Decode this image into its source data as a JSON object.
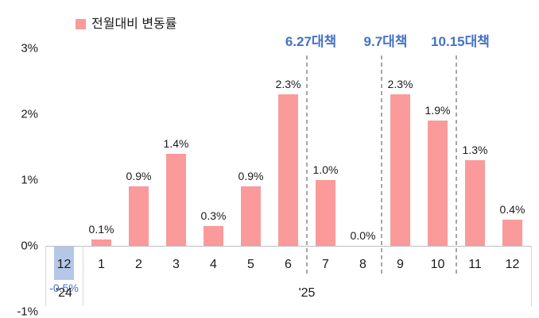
{
  "legend": {
    "label": "전월대비 변동률"
  },
  "y_axis": {
    "ticks": [
      {
        "label": "3%",
        "value": 3
      },
      {
        "label": "2%",
        "value": 2
      },
      {
        "label": "1%",
        "value": 1
      },
      {
        "label": "0%",
        "value": 0
      },
      {
        "label": "-1%",
        "value": -1
      }
    ]
  },
  "x_axis": {
    "group_labels": [
      {
        "label": "'24",
        "start_index": 0,
        "end_index": 0
      },
      {
        "label": "'25",
        "start_index": 1,
        "end_index": 12
      }
    ]
  },
  "chart_data": {
    "type": "bar",
    "title": "전월대비 변동률",
    "categories": [
      "12",
      "1",
      "2",
      "3",
      "4",
      "5",
      "6",
      "7",
      "8",
      "9",
      "10",
      "11",
      "12"
    ],
    "values": [
      -0.5,
      0.1,
      0.9,
      1.4,
      0.3,
      0.9,
      2.3,
      1.0,
      0.0,
      2.3,
      1.9,
      1.3,
      0.4
    ],
    "data_labels": [
      "-0.5%",
      "0.1%",
      "0.9%",
      "1.4%",
      "0.3%",
      "0.9%",
      "2.3%",
      "1.0%",
      "0.0%",
      "2.3%",
      "1.9%",
      "1.3%",
      "0.4%"
    ],
    "unit": "%",
    "ylim": [
      -1,
      3
    ],
    "grid": false,
    "legend_position": "top-left",
    "reference_lines": [
      {
        "label": "6.27대책",
        "after_category_index": 6
      },
      {
        "label": "9.7대책",
        "after_category_index": 8
      },
      {
        "label": "10.15대책",
        "after_category_index": 10
      }
    ]
  },
  "colors": {
    "bar": "#FA9A9A",
    "negative_bar": "#B4C7E7",
    "annotation_text": "#4472C4",
    "negative_value_text": "#4472C4",
    "dashed_line": "#A6A6A6",
    "axis_line": "#BFBFBF",
    "separator_line": "#D9D9D9",
    "text": "#1A1A1A"
  }
}
